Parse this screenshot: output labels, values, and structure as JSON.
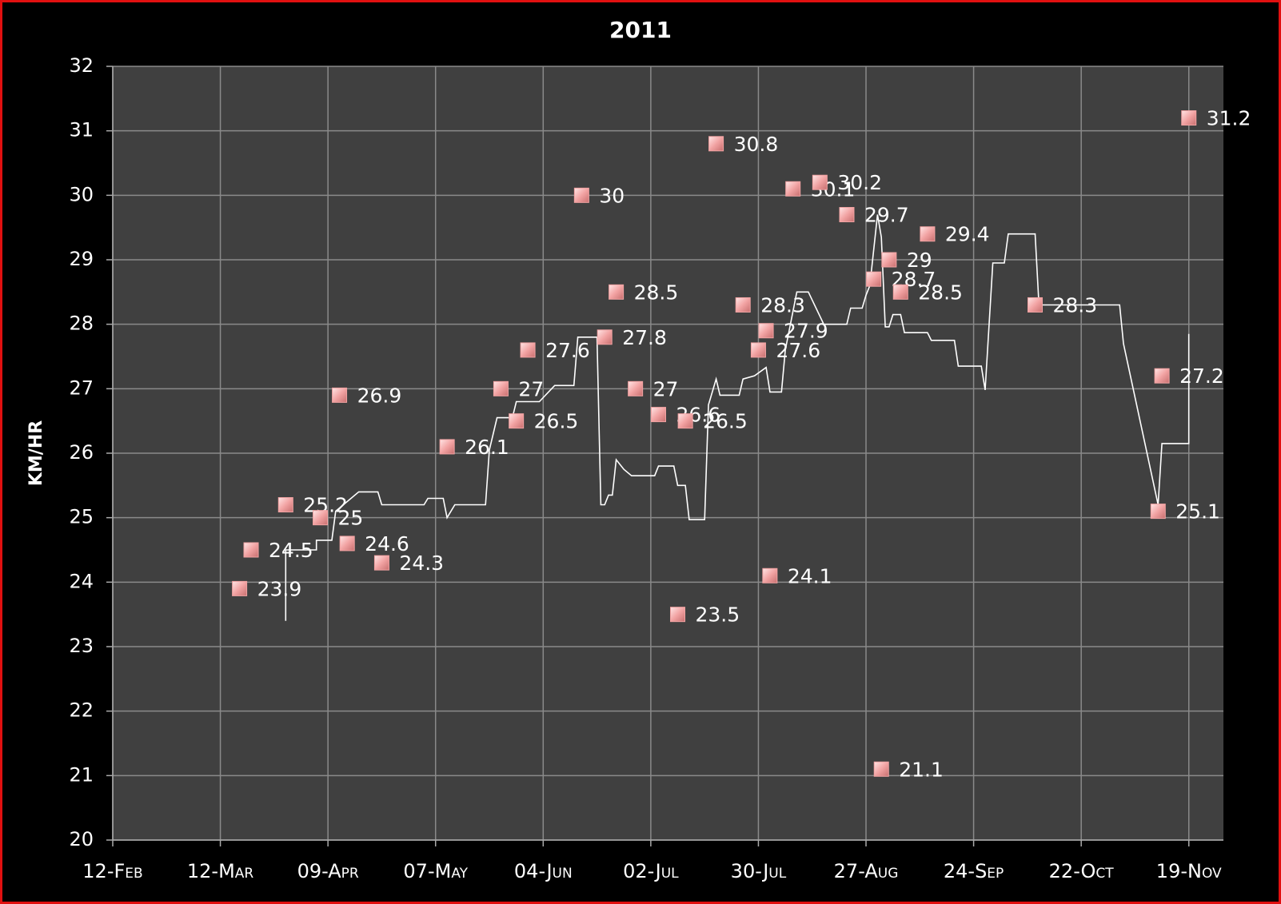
{
  "chart_data": {
    "type": "scatter",
    "title": "2011",
    "y_label": "KM/HR",
    "xlim": [
      "2011-02-12",
      "2011-11-28"
    ],
    "xticks": [
      {
        "value": "2011-02-12",
        "label": "12-Feb"
      },
      {
        "value": "2011-03-12",
        "label": "12-Mar"
      },
      {
        "value": "2011-04-09",
        "label": "09-Apr"
      },
      {
        "value": "2011-05-07",
        "label": "07-May"
      },
      {
        "value": "2011-06-04",
        "label": "04-Jun"
      },
      {
        "value": "2011-07-02",
        "label": "02-Jul"
      },
      {
        "value": "2011-07-30",
        "label": "30-Jul"
      },
      {
        "value": "2011-08-27",
        "label": "27-Aug"
      },
      {
        "value": "2011-09-24",
        "label": "24-Sep"
      },
      {
        "value": "2011-10-22",
        "label": "22-Oct"
      },
      {
        "value": "2011-11-19",
        "label": "19-Nov"
      }
    ],
    "ylim": [
      20,
      32
    ],
    "yticks": [
      20,
      21,
      22,
      23,
      24,
      25,
      26,
      27,
      28,
      29,
      30,
      31,
      32
    ],
    "grid": true,
    "series": [
      {
        "type": "scatter",
        "color": "#f2a3a3",
        "data_labels": true,
        "x": [
          "2011-03-17",
          "2011-03-20",
          "2011-03-29",
          "2011-04-07",
          "2011-04-12",
          "2011-04-14",
          "2011-04-23",
          "2011-05-10",
          "2011-05-24",
          "2011-05-28",
          "2011-05-31",
          "2011-06-14",
          "2011-06-20",
          "2011-06-23",
          "2011-06-28",
          "2011-07-04",
          "2011-07-09",
          "2011-07-11",
          "2011-07-19",
          "2011-07-26",
          "2011-07-30",
          "2011-08-01",
          "2011-08-02",
          "2011-08-08",
          "2011-08-15",
          "2011-08-22",
          "2011-08-29",
          "2011-08-31",
          "2011-09-02",
          "2011-09-05",
          "2011-09-12",
          "2011-10-10",
          "2011-11-11",
          "2011-11-12",
          "2011-11-19"
        ],
        "values": [
          23.9,
          24.5,
          25.2,
          25,
          26.9,
          24.6,
          24.3,
          26.1,
          27,
          26.5,
          27.6,
          30,
          27.8,
          28.5,
          27,
          26.6,
          23.5,
          26.5,
          30.8,
          28.3,
          27.6,
          27.9,
          24.1,
          30.1,
          30.2,
          29.7,
          28.7,
          21.1,
          29,
          28.5,
          29.4,
          28.3,
          25.1,
          27.2,
          31.2
        ]
      },
      {
        "type": "line",
        "color": "#ffffff",
        "x": [
          "2011-03-29",
          "2011-03-29",
          "2011-04-06",
          "2011-04-06",
          "2011-04-10",
          "2011-04-11",
          "2011-04-17",
          "2011-04-22",
          "2011-04-23",
          "2011-05-04",
          "2011-05-05",
          "2011-05-09",
          "2011-05-10",
          "2011-05-12",
          "2011-05-20",
          "2011-05-21",
          "2011-05-23",
          "2011-05-27",
          "2011-05-28",
          "2011-06-03",
          "2011-06-07",
          "2011-06-12",
          "2011-06-13",
          "2011-06-18",
          "2011-06-19",
          "2011-06-20",
          "2011-06-21",
          "2011-06-22",
          "2011-06-23",
          "2011-06-25",
          "2011-06-27",
          "2011-07-03",
          "2011-07-04",
          "2011-07-08",
          "2011-07-09",
          "2011-07-11",
          "2011-07-12",
          "2011-07-16",
          "2011-07-17",
          "2011-07-19",
          "2011-07-20",
          "2011-07-25",
          "2011-07-26",
          "2011-07-29",
          "2011-08-01",
          "2011-08-02",
          "2011-08-05",
          "2011-08-06",
          "2011-08-09",
          "2011-08-12",
          "2011-08-16",
          "2011-08-22",
          "2011-08-23",
          "2011-08-26",
          "2011-08-27",
          "2011-08-28",
          "2011-08-30",
          "2011-08-31",
          "2011-09-01",
          "2011-09-02",
          "2011-09-03",
          "2011-09-05",
          "2011-09-06",
          "2011-09-12",
          "2011-09-13",
          "2011-09-19",
          "2011-09-20",
          "2011-09-26",
          "2011-09-27",
          "2011-09-29",
          "2011-10-02",
          "2011-10-03",
          "2011-10-10",
          "2011-10-11",
          "2011-11-01",
          "2011-11-02",
          "2011-11-11",
          "2011-11-12",
          "2011-11-19",
          "2011-11-19"
        ],
        "values": [
          23.4,
          24.5,
          24.5,
          24.65,
          24.65,
          25.1,
          25.4,
          25.4,
          25.2,
          25.2,
          25.3,
          25.3,
          25.0,
          25.2,
          25.2,
          26.05,
          26.55,
          26.55,
          26.8,
          26.8,
          27.05,
          27.05,
          27.8,
          27.8,
          25.2,
          25.2,
          25.35,
          25.35,
          25.9,
          25.75,
          25.65,
          25.65,
          25.8,
          25.8,
          25.5,
          25.5,
          24.97,
          24.97,
          26.75,
          27.15,
          26.9,
          26.9,
          27.15,
          27.2,
          27.33,
          26.95,
          26.95,
          27.6,
          28.5,
          28.5,
          28.0,
          28.0,
          28.25,
          28.25,
          28.45,
          28.6,
          29.7,
          29.35,
          27.96,
          27.96,
          28.15,
          28.15,
          27.87,
          27.87,
          27.75,
          27.75,
          27.35,
          27.35,
          26.98,
          28.95,
          28.95,
          29.4,
          29.4,
          28.3,
          28.3,
          27.7,
          25.2,
          26.15,
          26.15,
          27.85
        ]
      }
    ]
  }
}
